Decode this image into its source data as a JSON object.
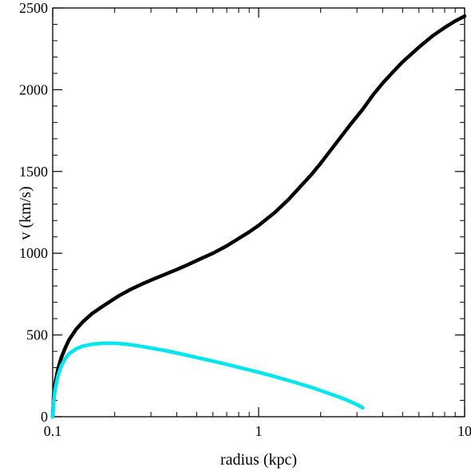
{
  "chart_data": {
    "type": "line",
    "xlabel": "radius (kpc)",
    "ylabel": "v (km/s)",
    "xscale": "log",
    "xlim": [
      0.1,
      10
    ],
    "ylim": [
      0,
      2500
    ],
    "x_ticks": [
      {
        "value": 0.1,
        "label": "0.1"
      },
      {
        "value": 1,
        "label": "1"
      },
      {
        "value": 10,
        "label": "10"
      }
    ],
    "y_ticks": [
      {
        "value": 0,
        "label": "0"
      },
      {
        "value": 500,
        "label": "500"
      },
      {
        "value": 1000,
        "label": "1000"
      },
      {
        "value": 1500,
        "label": "1500"
      },
      {
        "value": 2000,
        "label": "2000"
      },
      {
        "value": 2500,
        "label": "2500"
      }
    ],
    "grid": false,
    "legend": "none",
    "series": [
      {
        "color": "#000000",
        "points": [
          [
            0.1,
            0
          ],
          [
            0.101,
            120
          ],
          [
            0.103,
            210
          ],
          [
            0.106,
            290
          ],
          [
            0.11,
            360
          ],
          [
            0.115,
            420
          ],
          [
            0.12,
            470
          ],
          [
            0.13,
            535
          ],
          [
            0.14,
            580
          ],
          [
            0.155,
            630
          ],
          [
            0.17,
            665
          ],
          [
            0.19,
            705
          ],
          [
            0.21,
            740
          ],
          [
            0.24,
            780
          ],
          [
            0.27,
            810
          ],
          [
            0.3,
            835
          ],
          [
            0.35,
            870
          ],
          [
            0.4,
            900
          ],
          [
            0.45,
            928
          ],
          [
            0.5,
            955
          ],
          [
            0.6,
            1000
          ],
          [
            0.7,
            1045
          ],
          [
            0.8,
            1090
          ],
          [
            0.9,
            1130
          ],
          [
            1.0,
            1170
          ],
          [
            1.2,
            1250
          ],
          [
            1.4,
            1330
          ],
          [
            1.6,
            1410
          ],
          [
            1.8,
            1480
          ],
          [
            2.0,
            1550
          ],
          [
            2.4,
            1680
          ],
          [
            2.8,
            1790
          ],
          [
            3.2,
            1880
          ],
          [
            3.6,
            1970
          ],
          [
            4.0,
            2040
          ],
          [
            4.5,
            2110
          ],
          [
            5.0,
            2170
          ],
          [
            6.0,
            2260
          ],
          [
            7.0,
            2330
          ],
          [
            8.0,
            2380
          ],
          [
            9.0,
            2420
          ],
          [
            10.0,
            2450
          ]
        ]
      },
      {
        "color": "#00e5ee",
        "points": [
          [
            0.1,
            0
          ],
          [
            0.101,
            90
          ],
          [
            0.103,
            175
          ],
          [
            0.106,
            250
          ],
          [
            0.11,
            310
          ],
          [
            0.115,
            355
          ],
          [
            0.12,
            385
          ],
          [
            0.13,
            415
          ],
          [
            0.14,
            432
          ],
          [
            0.155,
            443
          ],
          [
            0.17,
            448
          ],
          [
            0.19,
            450
          ],
          [
            0.21,
            448
          ],
          [
            0.24,
            440
          ],
          [
            0.27,
            430
          ],
          [
            0.3,
            420
          ],
          [
            0.35,
            405
          ],
          [
            0.4,
            390
          ],
          [
            0.5,
            362
          ],
          [
            0.6,
            340
          ],
          [
            0.7,
            320
          ],
          [
            0.8,
            302
          ],
          [
            1.0,
            272
          ],
          [
            1.2,
            245
          ],
          [
            1.5,
            210
          ],
          [
            1.8,
            180
          ],
          [
            2.0,
            160
          ],
          [
            2.4,
            125
          ],
          [
            2.7,
            100
          ],
          [
            3.0,
            75
          ],
          [
            3.2,
            55
          ]
        ]
      }
    ]
  }
}
